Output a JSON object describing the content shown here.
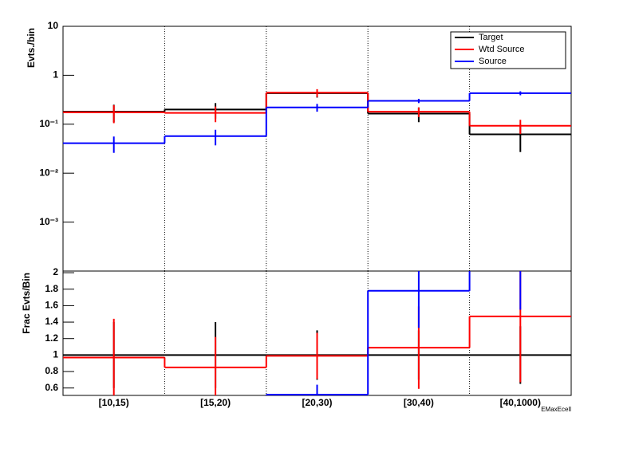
{
  "chart_data": [
    {
      "type": "step",
      "y_label": "Evts./bin",
      "log_y": true,
      "xgrid": true,
      "legend": "top-right",
      "ylim": [
        0.0001,
        10
      ],
      "yticks": [
        10,
        1,
        {
          "value": 0.1,
          "label": "10⁻¹"
        },
        {
          "value": 0.01,
          "label": "10⁻²"
        },
        {
          "value": 0.001,
          "label": "10⁻³"
        }
      ],
      "series": [
        {
          "name": "Target",
          "color": "#000000",
          "values": [
            0.18,
            0.2,
            0.43,
            0.165,
            0.062
          ],
          "errors": [
            0.07,
            0.07,
            0.08,
            0.055,
            0.035
          ]
        },
        {
          "name": "Wtd Source",
          "color": "#ff0000",
          "values": [
            0.175,
            0.17,
            0.44,
            0.18,
            0.093
          ],
          "errors": [
            0.07,
            0.06,
            0.08,
            0.04,
            0.03
          ]
        },
        {
          "name": "Source",
          "color": "#0000ff",
          "values": [
            0.041,
            0.057,
            0.22,
            0.3,
            0.43
          ],
          "errors": [
            0.015,
            0.02,
            0.04,
            0.03,
            0.04
          ]
        }
      ]
    },
    {
      "type": "step",
      "y_label": "Frac Evts/Bin",
      "x_label": "EMaxEcell",
      "xgrid": true,
      "categories": [
        "[10,15)",
        "[15,20)",
        "[20,30)",
        "[30,40)",
        "[40,1000)"
      ],
      "ylim": [
        0.51,
        2.02
      ],
      "yticks": [
        0.6,
        0.8,
        1,
        1.2,
        1.4,
        1.6,
        1.8,
        2
      ],
      "series": [
        {
          "color": "#000000",
          "values": [
            1,
            1,
            1,
            1,
            1
          ],
          "errors": [
            0.4,
            0.4,
            0.3,
            0.3,
            0.35
          ]
        },
        {
          "color": "#ff0000",
          "values": [
            0.97,
            0.85,
            0.99,
            1.09,
            1.47
          ],
          "errors": [
            0.47,
            0.37,
            0.28,
            0.5,
            0.8
          ]
        },
        {
          "color": "#0000ff",
          "values": [
            0.5,
            0.5,
            0.52,
            1.78,
            2.05
          ],
          "errors": [
            0,
            0,
            0.12,
            0.45,
            0.5
          ]
        }
      ]
    }
  ]
}
